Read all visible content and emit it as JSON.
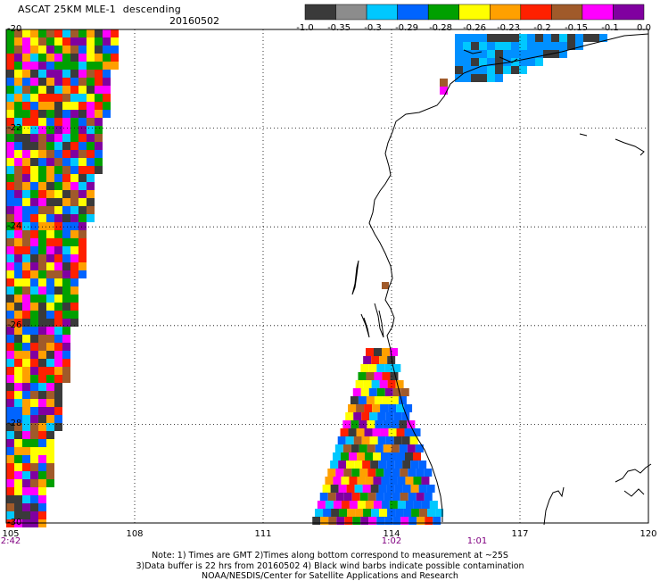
{
  "header": {
    "product": "ASCAT 25KM MLE-1",
    "pass": "descending",
    "date": "20160502"
  },
  "colorbar": {
    "ticks": [
      "-1.0",
      "-0.35",
      "-0.3",
      "-0.29",
      "-0.28",
      "-0.26",
      "-0.23",
      "-0.2",
      "-0.15",
      "-0.1",
      "0.0"
    ],
    "colors": [
      "#3a3a3a",
      "#8c8c8c",
      "#00c8ff",
      "#0064ff",
      "#00a000",
      "#ffff00",
      "#ffa000",
      "#ff2000",
      "#a05a2a",
      "#ff00ff",
      "#8000a0"
    ]
  },
  "map_data": {
    "lon_ticks": [
      "105",
      "108",
      "111",
      "114",
      "117",
      "120"
    ],
    "lat_ticks": [
      "-20",
      "-22",
      "-24",
      "-26",
      "-28",
      "-30"
    ],
    "lon_range": [
      105,
      120
    ],
    "lat_range": [
      -30,
      -20
    ],
    "grid": true,
    "swath_times": [
      {
        "label": "2:42",
        "lon": 105
      },
      {
        "label": "1:02",
        "lon": 114
      },
      {
        "label": "1:01",
        "lon": 116
      }
    ]
  },
  "notes": {
    "line1": "Note: 1) Times are GMT 2)Times along bottom correspond to measurement at ~25S",
    "line2": "3)Data buffer is 22 hrs from 20160502 4) Black wind barbs indicate possible contamination",
    "line3": "NOAA/NESDIS/Center for Satellite Applications and Research"
  }
}
